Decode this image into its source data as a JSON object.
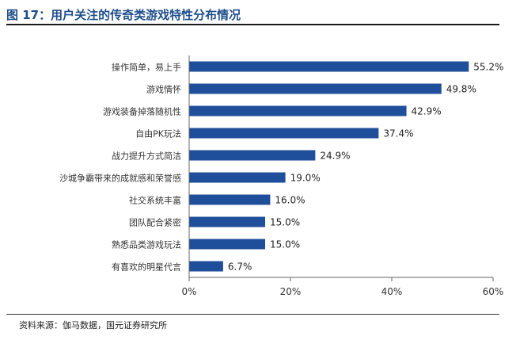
{
  "figure": {
    "title": "图 17：用户关注的传奇类游戏特性分布情况",
    "source": "资料来源：伽马数据，国元证券研究所"
  },
  "chart_data": {
    "type": "bar",
    "orientation": "horizontal",
    "categories": [
      "操作简单，易上手",
      "游戏情怀",
      "游戏装备掉落随机性",
      "自由PK玩法",
      "战力提升方式简洁",
      "沙城争霸带来的成就感和荣誉感",
      "社交系统丰富",
      "团队配合紧密",
      "熟悉品类游戏玩法",
      "有喜欢的明星代言"
    ],
    "values": [
      55.2,
      49.8,
      42.9,
      37.4,
      24.9,
      19.0,
      16.0,
      15.0,
      15.0,
      6.7
    ],
    "value_labels": [
      "55.2%",
      "49.8%",
      "42.9%",
      "37.4%",
      "24.9%",
      "19.0%",
      "16.0%",
      "15.0%",
      "15.0%",
      "6.7%"
    ],
    "xlim": [
      0,
      60
    ],
    "xticks": [
      "0%",
      "20%",
      "40%",
      "60%"
    ],
    "xlabel": "",
    "ylabel": "",
    "bar_color": "#1f4e9a",
    "grid": false
  }
}
